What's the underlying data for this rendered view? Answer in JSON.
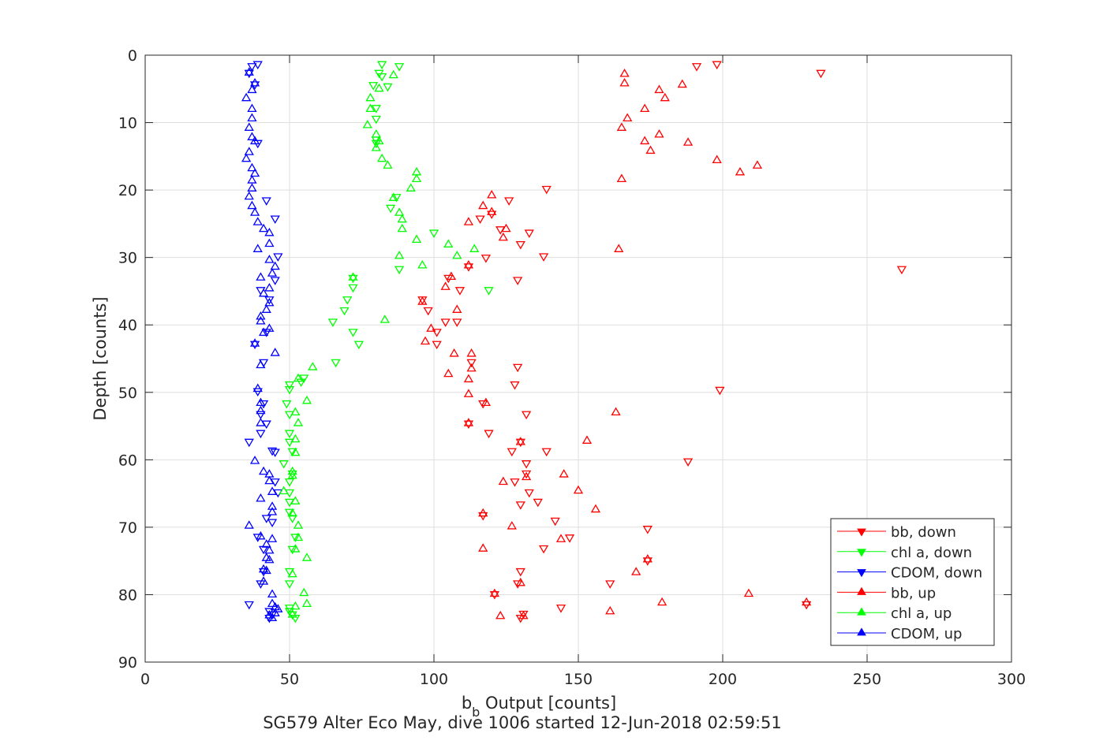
{
  "chart_data": {
    "type": "scatter",
    "title": "",
    "xlabel_main": "b",
    "xlabel_sub": "b",
    "xlabel_rest": " Output [counts]",
    "ylabel": "Depth [counts]",
    "caption": "SG579 Alter Eco May, dive 1006 started 12-Jun-2018 02:59:51",
    "xlim": [
      0,
      300
    ],
    "ylim": [
      0,
      90
    ],
    "y_reversed": true,
    "grid": true,
    "legend_position": "bottom-right",
    "x_ticks": [
      "0",
      "50",
      "100",
      "150",
      "200",
      "250",
      "300"
    ],
    "y_ticks": [
      "0",
      "10",
      "20",
      "30",
      "40",
      "50",
      "60",
      "70",
      "80",
      "90"
    ],
    "series": [
      {
        "name": "bb, down",
        "color": "#ff0000",
        "marker": "triangle-down",
        "points": [
          [
            198,
            1.3
          ],
          [
            191,
            1.6
          ],
          [
            234,
            2.6
          ],
          [
            262,
            31.7
          ],
          [
            139,
            19.8
          ],
          [
            126,
            21.5
          ],
          [
            133,
            26.3
          ],
          [
            130,
            28
          ],
          [
            138,
            29.8
          ],
          [
            129,
            33.3
          ],
          [
            120,
            23.5
          ],
          [
            116,
            24.2
          ],
          [
            123,
            25.8
          ],
          [
            118,
            30
          ],
          [
            112,
            31.3
          ],
          [
            109,
            34.8
          ],
          [
            105,
            33
          ],
          [
            96,
            36.2
          ],
          [
            98,
            37.8
          ],
          [
            108,
            39.5
          ],
          [
            104,
            39.5
          ],
          [
            101,
            41
          ],
          [
            101,
            42.8
          ],
          [
            113,
            45.5
          ],
          [
            129,
            46.2
          ],
          [
            128,
            48.8
          ],
          [
            199,
            49.6
          ],
          [
            117,
            51.6
          ],
          [
            132,
            53.2
          ],
          [
            112,
            54.6
          ],
          [
            119,
            56
          ],
          [
            130,
            57.3
          ],
          [
            127,
            58.7
          ],
          [
            139,
            58.7
          ],
          [
            132,
            60.5
          ],
          [
            188,
            60.2
          ],
          [
            132,
            62
          ],
          [
            128,
            63.2
          ],
          [
            133,
            64.8
          ],
          [
            136,
            66.2
          ],
          [
            130,
            66.6
          ],
          [
            117,
            68.2
          ],
          [
            142,
            69
          ],
          [
            174,
            70.2
          ],
          [
            147,
            71.5
          ],
          [
            138,
            73.1
          ],
          [
            174,
            74.9
          ],
          [
            130,
            76.5
          ],
          [
            129,
            78.3
          ],
          [
            161,
            78.3
          ],
          [
            121,
            79.9
          ],
          [
            144,
            81.9
          ],
          [
            131,
            82.8
          ],
          [
            130,
            83.4
          ],
          [
            229,
            81.4
          ]
        ]
      },
      {
        "name": "chl a, down",
        "color": "#00ff00",
        "marker": "triangle-down",
        "points": [
          [
            82,
            1.3
          ],
          [
            88,
            1.6
          ],
          [
            81,
            2.6
          ],
          [
            82,
            3.1
          ],
          [
            79,
            4.4
          ],
          [
            84,
            4.6
          ],
          [
            80,
            7.8
          ],
          [
            80,
            9.4
          ],
          [
            80,
            12.5
          ],
          [
            80,
            13
          ],
          [
            87,
            21
          ],
          [
            85,
            22.6
          ],
          [
            100,
            26.3
          ],
          [
            88,
            31.7
          ],
          [
            119,
            34.8
          ],
          [
            72,
            33
          ],
          [
            72,
            34.4
          ],
          [
            70,
            36.2
          ],
          [
            69,
            37.8
          ],
          [
            65,
            39.5
          ],
          [
            72,
            41
          ],
          [
            74,
            42.8
          ],
          [
            66,
            45.5
          ],
          [
            55,
            47.8
          ],
          [
            54,
            48.4
          ],
          [
            50,
            48.8
          ],
          [
            50,
            49.5
          ],
          [
            49,
            51.6
          ],
          [
            50,
            53.2
          ],
          [
            50,
            56
          ],
          [
            50,
            57.3
          ],
          [
            51,
            58.7
          ],
          [
            48,
            60.5
          ],
          [
            51,
            62
          ],
          [
            50,
            63.2
          ],
          [
            50,
            64.8
          ],
          [
            50,
            66.2
          ],
          [
            50,
            67.7
          ],
          [
            51,
            68.6
          ],
          [
            52,
            71.4
          ],
          [
            51,
            73.2
          ],
          [
            50,
            76.5
          ],
          [
            50,
            78.3
          ],
          [
            50,
            81.9
          ],
          [
            50,
            82.4
          ],
          [
            51,
            82.9
          ],
          [
            52,
            83.4
          ]
        ]
      },
      {
        "name": "CDOM, down",
        "color": "#0000ff",
        "marker": "triangle-down",
        "points": [
          [
            39,
            1.3
          ],
          [
            37,
            1.6
          ],
          [
            36,
            2.6
          ],
          [
            38,
            4.3
          ],
          [
            39,
            13
          ],
          [
            42,
            21.5
          ],
          [
            45,
            24.2
          ],
          [
            46,
            29.8
          ],
          [
            45,
            33.3
          ],
          [
            40,
            34.8
          ],
          [
            43,
            36.2
          ],
          [
            42,
            41
          ],
          [
            38,
            42.8
          ],
          [
            41,
            45.5
          ],
          [
            39,
            49.8
          ],
          [
            41,
            51.6
          ],
          [
            40,
            53.2
          ],
          [
            42,
            54.6
          ],
          [
            40,
            56
          ],
          [
            36,
            57.3
          ],
          [
            44,
            58.6
          ],
          [
            45,
            58.8
          ],
          [
            45,
            63.2
          ],
          [
            46,
            64.8
          ],
          [
            42,
            68.6
          ],
          [
            44,
            69.2
          ],
          [
            39,
            71.4
          ],
          [
            41,
            73.2
          ],
          [
            41,
            76.5
          ],
          [
            40,
            78.3
          ],
          [
            36,
            81.4
          ],
          [
            43,
            82.4
          ],
          [
            44,
            82.9
          ],
          [
            43,
            83.4
          ]
        ]
      },
      {
        "name": "bb, up",
        "color": "#ff0000",
        "marker": "triangle-up",
        "points": [
          [
            166,
            2.8
          ],
          [
            166,
            4.2
          ],
          [
            178,
            5.2
          ],
          [
            186,
            4.4
          ],
          [
            180,
            6.4
          ],
          [
            173,
            8
          ],
          [
            167,
            9.4
          ],
          [
            165,
            10.8
          ],
          [
            178,
            11.8
          ],
          [
            173,
            12.8
          ],
          [
            188,
            13
          ],
          [
            175,
            14.2
          ],
          [
            198,
            15.6
          ],
          [
            206,
            17.4
          ],
          [
            212,
            16.4
          ],
          [
            165,
            18.4
          ],
          [
            120,
            20.8
          ],
          [
            117,
            22.4
          ],
          [
            120,
            23.3
          ],
          [
            112,
            24.8
          ],
          [
            124,
            27.1
          ],
          [
            125,
            25.8
          ],
          [
            164,
            28.8
          ],
          [
            112,
            31.2
          ],
          [
            106,
            32.9
          ],
          [
            104,
            34.4
          ],
          [
            96,
            36.6
          ],
          [
            108,
            37.8
          ],
          [
            99,
            40.6
          ],
          [
            97,
            42.5
          ],
          [
            107,
            44.3
          ],
          [
            113,
            44.3
          ],
          [
            113,
            46.5
          ],
          [
            112,
            48.1
          ],
          [
            105,
            47.3
          ],
          [
            112,
            50.3
          ],
          [
            118,
            51.6
          ],
          [
            163,
            53
          ],
          [
            112,
            54.6
          ],
          [
            153,
            57.2
          ],
          [
            130,
            57.4
          ],
          [
            132,
            62.6
          ],
          [
            145,
            62.2
          ],
          [
            124,
            63.3
          ],
          [
            150,
            64.6
          ],
          [
            156,
            67.4
          ],
          [
            117,
            68
          ],
          [
            127,
            69.9
          ],
          [
            144,
            71.8
          ],
          [
            117,
            73.2
          ],
          [
            174,
            74.8
          ],
          [
            170,
            76.7
          ],
          [
            130,
            78.3
          ],
          [
            121,
            79.9
          ],
          [
            209,
            79.9
          ],
          [
            179,
            81.2
          ],
          [
            229,
            81.2
          ],
          [
            161,
            82.5
          ],
          [
            123,
            83.2
          ],
          [
            131,
            83.2
          ]
        ]
      },
      {
        "name": "chl a, up",
        "color": "#00ff00",
        "marker": "triangle-up",
        "points": [
          [
            86,
            3
          ],
          [
            81,
            5
          ],
          [
            78,
            6.4
          ],
          [
            78,
            8
          ],
          [
            77,
            10.4
          ],
          [
            80,
            11.8
          ],
          [
            81,
            12.8
          ],
          [
            80,
            13.8
          ],
          [
            82,
            15.4
          ],
          [
            84,
            16.4
          ],
          [
            94,
            17.4
          ],
          [
            94,
            18.4
          ],
          [
            92,
            19.8
          ],
          [
            86,
            21.2
          ],
          [
            88,
            23.4
          ],
          [
            89,
            24.4
          ],
          [
            89,
            25.8
          ],
          [
            94,
            27.4
          ],
          [
            105,
            28.1
          ],
          [
            114,
            28.8
          ],
          [
            108,
            29.8
          ],
          [
            88,
            29.8
          ],
          [
            96,
            31.2
          ],
          [
            72,
            33
          ],
          [
            83,
            39.3
          ],
          [
            58,
            46.3
          ],
          [
            53,
            48
          ],
          [
            56,
            51.3
          ],
          [
            52,
            53
          ],
          [
            53,
            54.6
          ],
          [
            52,
            57
          ],
          [
            52,
            59
          ],
          [
            51,
            61.8
          ],
          [
            51,
            62.4
          ],
          [
            48,
            64.7
          ],
          [
            52,
            66.2
          ],
          [
            51,
            68
          ],
          [
            53,
            69.8
          ],
          [
            53,
            71.6
          ],
          [
            52,
            73.3
          ],
          [
            56,
            74.6
          ],
          [
            51,
            77
          ],
          [
            55,
            79.8
          ],
          [
            56,
            81.4
          ],
          [
            52,
            81.8
          ],
          [
            51,
            83
          ]
        ]
      },
      {
        "name": "CDOM, up",
        "color": "#0000ff",
        "marker": "triangle-up",
        "points": [
          [
            36,
            2.6
          ],
          [
            38,
            4.2
          ],
          [
            37,
            5.2
          ],
          [
            35,
            6.4
          ],
          [
            37,
            8
          ],
          [
            37,
            9.4
          ],
          [
            36,
            10.8
          ],
          [
            37,
            12.2
          ],
          [
            38,
            12.8
          ],
          [
            36,
            14.4
          ],
          [
            35,
            15.4
          ],
          [
            37,
            16.8
          ],
          [
            38,
            17.6
          ],
          [
            37,
            18.6
          ],
          [
            37,
            19.8
          ],
          [
            36,
            21
          ],
          [
            37,
            22.4
          ],
          [
            38,
            23.4
          ],
          [
            39,
            24.8
          ],
          [
            41,
            25.8
          ],
          [
            43,
            26.4
          ],
          [
            43,
            28
          ],
          [
            39,
            28.8
          ],
          [
            43,
            30.4
          ],
          [
            45,
            31.4
          ],
          [
            44,
            32.4
          ],
          [
            40,
            33
          ],
          [
            43,
            34.6
          ],
          [
            41,
            35.4
          ],
          [
            43,
            36.8
          ],
          [
            42,
            37.8
          ],
          [
            40,
            38.8
          ],
          [
            40,
            39.5
          ],
          [
            43,
            40.6
          ],
          [
            41,
            41.2
          ],
          [
            38,
            42.8
          ],
          [
            45,
            44.2
          ],
          [
            40,
            46
          ],
          [
            39,
            49.5
          ],
          [
            40,
            51.6
          ],
          [
            40,
            52.8
          ],
          [
            40,
            54.6
          ],
          [
            38,
            60.2
          ],
          [
            41,
            61.8
          ],
          [
            43,
            62.2
          ],
          [
            43,
            63.2
          ],
          [
            44,
            64.8
          ],
          [
            40,
            65.8
          ],
          [
            44,
            67
          ],
          [
            44,
            67.8
          ],
          [
            36,
            69.8
          ],
          [
            40,
            71.4
          ],
          [
            44,
            71.8
          ],
          [
            42,
            72.6
          ],
          [
            43,
            73.5
          ],
          [
            42,
            74.6
          ],
          [
            43,
            74.9
          ],
          [
            41,
            76.3
          ],
          [
            42,
            76.5
          ],
          [
            41,
            78.1
          ],
          [
            44,
            80
          ],
          [
            44,
            81.4
          ],
          [
            45,
            81.9
          ],
          [
            46,
            82.2
          ],
          [
            45,
            82.8
          ],
          [
            43,
            83.1
          ],
          [
            44,
            83.5
          ]
        ]
      }
    ]
  }
}
